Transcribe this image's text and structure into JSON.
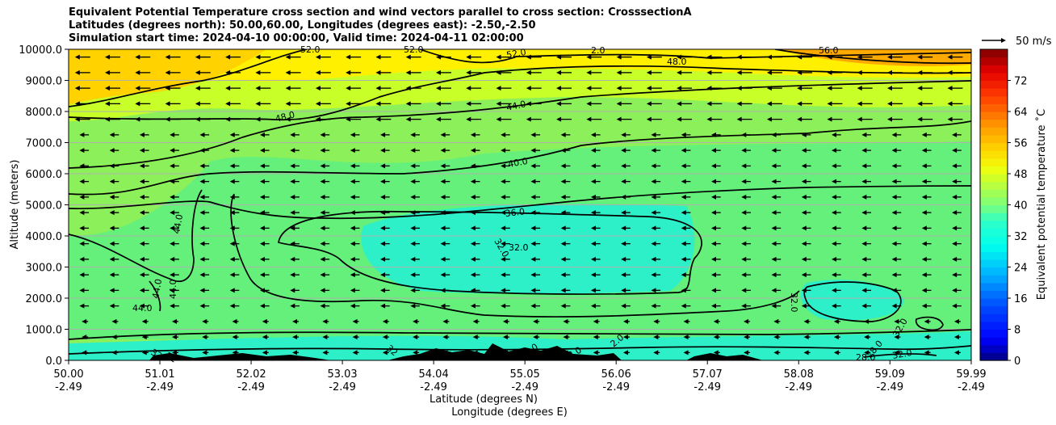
{
  "title_lines": [
    "Equivalent Potential Temperature cross section and wind vectors parallel to cross section: CrosssectionA",
    "Latitudes (degrees north): 50.00,60.00, Longitudes (degrees east): -2.50,-2.50",
    "Simulation start time: 2024-04-10 00:00:00, Valid time: 2024-04-11 02:00:00"
  ],
  "chart_data": {
    "type": "contour_cross_section",
    "title": "Equivalent Potential Temperature cross section and wind vectors parallel to cross section: CrosssectionA",
    "ylabel": "Altitude (meters)",
    "xlabel": "Latitude (degrees N)",
    "xlabel2": "Longitude (degrees E)",
    "ylim": [
      0,
      10000
    ],
    "yticks": [
      "0.0",
      "1000.0",
      "2000.0",
      "3000.0",
      "4000.0",
      "5000.0",
      "6000.0",
      "7000.0",
      "8000.0",
      "9000.0",
      "10000.0"
    ],
    "xlim": [
      50.0,
      59.99
    ],
    "xticks_lat": [
      "50.00",
      "51.01",
      "52.02",
      "53.03",
      "54.04",
      "55.05",
      "56.06",
      "57.07",
      "58.08",
      "59.09",
      "59.99"
    ],
    "xticks_lon": [
      "-2.49",
      "-2.49",
      "-2.49",
      "-2.49",
      "-2.49",
      "-2.49",
      "-2.49",
      "-2.49",
      "-2.49",
      "-2.49",
      "-2.49"
    ],
    "colorbar": {
      "label": "Equivalent potential temperature ˚C",
      "range": [
        0,
        80
      ],
      "ticks": [
        "0",
        "8",
        "16",
        "24",
        "32",
        "40",
        "48",
        "56",
        "64",
        "72"
      ]
    },
    "quiver_key": "50 m/s",
    "contour_labels": [
      "52.0",
      "52.0",
      "52.0",
      "2.0",
      "48.0",
      "56.0",
      "48.0",
      "44.0",
      "40.0",
      "44.0",
      "36.0",
      "32.0",
      "32.0",
      "44.0",
      "44.0",
      "44.0",
      "32.0",
      "32.0",
      "32.0",
      "28.0",
      "28.0",
      "32",
      "32",
      "32",
      "2.0",
      "2.0",
      "2.0"
    ],
    "wind": {
      "u_ms": -8,
      "direction": "left (southward along section)"
    }
  }
}
